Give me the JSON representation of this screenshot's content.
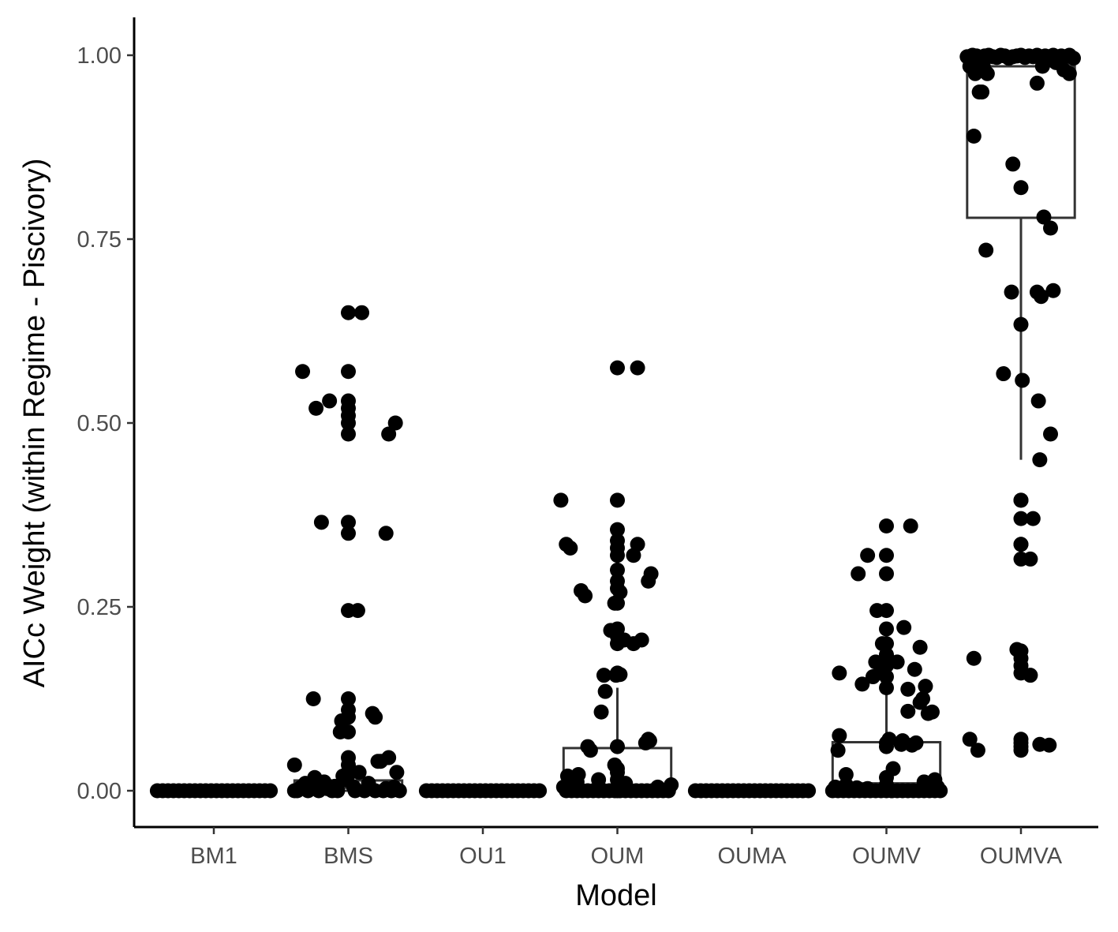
{
  "chart_data": {
    "type": "boxplot-jitter",
    "xlabel": "Model",
    "ylabel": "AICc Weight (within Regime - Piscivory)",
    "ylim": [
      -0.05,
      1.05
    ],
    "yticks": [
      0.0,
      0.25,
      0.5,
      0.75,
      1.0
    ],
    "ytick_labels": [
      "0.00",
      "0.25",
      "0.50",
      "0.75",
      "1.00"
    ],
    "categories": [
      "BM1",
      "BMS",
      "OU1",
      "OUM",
      "OUMA",
      "OUMV",
      "OUMVA"
    ],
    "colors": {
      "point": "#000000",
      "box_stroke": "#333333",
      "axis": "#000000"
    },
    "boxes": [
      {
        "category": "BM1",
        "min": 0.0,
        "q1": 0.0,
        "median": 0.0,
        "q3": 0.0,
        "max": 0.0
      },
      {
        "category": "BMS",
        "min": 0.0,
        "q1": 0.0,
        "median": 0.004,
        "q3": 0.014,
        "max": 0.035
      },
      {
        "category": "OU1",
        "min": 0.0,
        "q1": 0.0,
        "median": 0.0,
        "q3": 0.0,
        "max": 0.0
      },
      {
        "category": "OUM",
        "min": 0.0,
        "q1": 0.0,
        "median": 0.006,
        "q3": 0.058,
        "max": 0.14
      },
      {
        "category": "OUMA",
        "min": 0.0,
        "q1": 0.0,
        "median": 0.0,
        "q3": 0.0,
        "max": 0.0
      },
      {
        "category": "OUMV",
        "min": 0.0,
        "q1": 0.0,
        "median": 0.01,
        "q3": 0.066,
        "max": 0.16
      },
      {
        "category": "OUMVA",
        "min": 0.45,
        "q1": 0.779,
        "median": 0.985,
        "q3": 0.998,
        "max": 1.0
      }
    ],
    "points": {
      "BM1": {
        "offsets": [
          -0.42,
          -0.38,
          -0.34,
          -0.3,
          -0.26,
          -0.22,
          -0.18,
          -0.14,
          -0.1,
          -0.06,
          -0.02,
          0.02,
          0.06,
          0.1,
          0.14,
          0.18,
          0.22,
          0.26,
          0.3,
          0.34,
          0.38,
          0.42
        ],
        "values": [
          0,
          0,
          0,
          0,
          0,
          0,
          0,
          0,
          0,
          0,
          0,
          0,
          0,
          0,
          0,
          0,
          0,
          0,
          0,
          0,
          0,
          0
        ]
      },
      "BMS": {
        "offsets": [
          -0.34,
          -0.24,
          -0.14,
          -0.05,
          0.1,
          0.2,
          0.3,
          0.35,
          0.28,
          0.07,
          -0.2,
          -0.26,
          0.18,
          -0.4,
          0.0,
          0.0,
          0.0,
          0.0,
          0.0,
          0.0,
          0.0,
          0.0,
          0.0,
          0.0,
          0.0,
          0.0,
          0.0,
          0.0,
          0.0,
          0.0,
          0.0,
          -0.38,
          -0.3,
          -0.22,
          -0.12,
          -0.08,
          0.05,
          0.12,
          0.2,
          0.26,
          0.32,
          0.38,
          -0.35,
          -0.27,
          -0.18,
          -0.1,
          -0.04,
          0.08,
          0.15,
          0.24,
          0.3,
          0.36,
          -0.4,
          -0.32,
          -0.25,
          -0.16,
          -0.06,
          0.22,
          0.28,
          -0.02,
          0.04,
          0.34
        ],
        "values": [
          0.57,
          0.52,
          0.53,
          0.095,
          0.65,
          0.1,
          0.485,
          0.5,
          0.35,
          0.245,
          0.365,
          0.125,
          0.105,
          0.035,
          0.65,
          0.57,
          0.53,
          0.52,
          0.51,
          0.5,
          0.485,
          0.365,
          0.35,
          0.245,
          0.125,
          0.11,
          0.1,
          0.08,
          0.045,
          0.035,
          0.022,
          0.0,
          0.0,
          0.0,
          0.0,
          0.0,
          0.0,
          0.0,
          0.0,
          0.0,
          0.0,
          0.0,
          0.005,
          0.008,
          0.012,
          0.006,
          0.02,
          0.025,
          0.01,
          0.04,
          0.045,
          0.025,
          0.0,
          0.01,
          0.018,
          0.003,
          0.08,
          0.04,
          0.003,
          0.015,
          0.005,
          0.005
        ]
      },
      "OU1": {
        "offsets": [
          -0.42,
          -0.38,
          -0.34,
          -0.3,
          -0.26,
          -0.22,
          -0.18,
          -0.14,
          -0.1,
          -0.06,
          -0.02,
          0.02,
          0.06,
          0.1,
          0.14,
          0.18,
          0.22,
          0.26,
          0.3,
          0.34,
          0.38,
          0.42
        ],
        "values": [
          0,
          0,
          0,
          0,
          0,
          0,
          0,
          0,
          0,
          0,
          0,
          0,
          0,
          0,
          0,
          0,
          0,
          0,
          0,
          0,
          0,
          0
        ]
      },
      "OUM": {
        "offsets": [
          -0.38,
          -0.34,
          -0.3,
          -0.25,
          -0.2,
          -0.13,
          -0.06,
          0.05,
          0.12,
          0.18,
          0.22,
          0.25,
          0.27,
          0.3,
          0.33,
          0.34,
          0.38,
          0.4,
          0.41,
          -0.4,
          -0.28,
          -0.22,
          -0.08,
          -0.1,
          -0.06,
          -0.04,
          0.02,
          0.15,
          0.08,
          0.05,
          0.1,
          0.16,
          -0.36,
          -0.32,
          -0.28,
          -0.24,
          -0.18,
          -0.14,
          -0.1,
          -0.06,
          -0.02,
          0.02,
          0.06,
          0.1,
          0.14,
          0.18,
          0.22,
          0.26,
          0.3,
          0.34,
          0.38,
          0.42,
          -0.35,
          -0.22,
          0.08,
          0.03,
          0.0,
          0.0,
          0.0,
          0.0,
          0.0,
          0.0,
          0.0,
          0.0,
          0.0,
          0.0,
          0.0,
          0.0,
          0.0,
          0.0,
          0.0,
          0.0,
          0.0,
          0.0
        ],
        "values": [
          0.395,
          0.335,
          0.33,
          0.272,
          0.265,
          0.575,
          0.255,
          0.27,
          0.32,
          0.335,
          0.295,
          0.285,
          0.205,
          0.2,
          0.205,
          0.065,
          0.07,
          0.068,
          0.005,
          0.005,
          0.02,
          0.022,
          0.218,
          0.157,
          0.135,
          0.107,
          0.157,
          0.158,
          0.06,
          0.055,
          0.035,
          0.0,
          0.0,
          0.0,
          0.0,
          0.0,
          0.0,
          0.0,
          0.0,
          0.0,
          0.0,
          0.0,
          0.0,
          0.0,
          0.0,
          0.0,
          0.0,
          0.0,
          0.0,
          0.0,
          0.0,
          0.008,
          0.012,
          0.015,
          0.01,
          0.395,
          0.355,
          0.34,
          0.33,
          0.32,
          0.3,
          0.285,
          0.275,
          0.255,
          0.22,
          0.21,
          0.2,
          0.16,
          0.06,
          0.025,
          0.0,
          0.575,
          0.03,
          0.015
        ],
        "jitter_x_fixed": [
          -0.42,
          -0.38,
          -0.35,
          -0.27,
          -0.24,
          0.15,
          -0.02,
          0.02,
          0.12,
          0.15,
          0.25,
          0.23,
          0.05,
          0.12,
          0.18,
          0.21,
          0.23,
          0.24,
          0.3,
          -0.4,
          -0.37,
          -0.29,
          -0.05,
          -0.1,
          -0.09,
          -0.12,
          -0.01,
          0.02,
          -0.22,
          -0.2,
          -0.02,
          -0.38,
          -0.34,
          -0.3,
          -0.26,
          -0.22,
          -0.18,
          -0.14,
          -0.1,
          -0.06,
          -0.02,
          0.02,
          0.06,
          0.1,
          0.14,
          0.18,
          0.22,
          0.26,
          0.3,
          0.34,
          0.38,
          0.4,
          -0.3,
          -0.14,
          0.06,
          0.0,
          0.0,
          0.0,
          0.0,
          0.0,
          0.0,
          0.0,
          0.0,
          0.0,
          0.0,
          0.0,
          0.0,
          0.0,
          0.0,
          0.0,
          0.0,
          0.0,
          0.0,
          0.0
        ]
      },
      "OUMA": {
        "offsets": [
          -0.42,
          -0.38,
          -0.34,
          -0.3,
          -0.26,
          -0.22,
          -0.18,
          -0.14,
          -0.1,
          -0.06,
          -0.02,
          0.02,
          0.06,
          0.1,
          0.14,
          0.18,
          0.22,
          0.26,
          0.3,
          0.34,
          0.38,
          0.42
        ],
        "values": [
          0,
          0,
          0,
          0,
          0,
          0,
          0,
          0,
          0,
          0,
          0,
          0,
          0,
          0,
          0,
          0,
          0,
          0,
          0,
          0,
          0,
          0
        ]
      },
      "OUMV": {
        "offsets": [
          -0.21,
          -0.14,
          -0.07,
          0.18,
          -0.35,
          -0.04,
          0.0,
          0.13,
          0.25,
          0.08,
          0.16,
          -0.03,
          -0.08,
          0.02,
          0.21,
          0.25,
          0.31,
          0.34,
          0.29,
          0.16,
          0.11,
          -0.35,
          -0.36,
          -0.3,
          0.12,
          0.19,
          0.22,
          0.27,
          -0.18,
          -0.1,
          0.05,
          0.04,
          -0.4,
          -0.36,
          -0.32,
          -0.28,
          -0.24,
          -0.2,
          -0.16,
          -0.12,
          -0.08,
          -0.04,
          0.0,
          0.04,
          0.08,
          0.12,
          0.16,
          0.2,
          0.24,
          0.28,
          0.32,
          0.36,
          0.4,
          -0.38,
          -0.3,
          -0.22,
          -0.14,
          0.28,
          0.36,
          0.38,
          0.0,
          0.0,
          0.0,
          0.0,
          0.0,
          0.0,
          0.0,
          0.0,
          0.0,
          0.0,
          0.0,
          0.0,
          0.0,
          0.0,
          0.0,
          0.0
        ],
        "values": [
          0.295,
          0.32,
          0.245,
          0.36,
          0.16,
          0.162,
          0.182,
          0.222,
          0.195,
          0.175,
          0.138,
          0.2,
          0.175,
          0.07,
          0.165,
          0.12,
          0.105,
          0.107,
          0.142,
          0.108,
          0.063,
          0.075,
          0.055,
          0.022,
          0.068,
          0.062,
          0.065,
          0.125,
          0.145,
          0.155,
          0.03,
          0.0,
          0.0,
          0.0,
          0.0,
          0.0,
          0.0,
          0.0,
          0.0,
          0.0,
          0.0,
          0.0,
          0.0,
          0.0,
          0.0,
          0.0,
          0.0,
          0.0,
          0.0,
          0.0,
          0.0,
          0.0,
          0.0,
          0.005,
          0.008,
          0.004,
          0.003,
          0.012,
          0.015,
          0.005,
          0.36,
          0.32,
          0.295,
          0.245,
          0.22,
          0.2,
          0.185,
          0.17,
          0.155,
          0.14,
          0.065,
          0.06,
          0.018,
          0.008,
          0.005,
          0.004
        ]
      },
      "OUMVA": {
        "offsets": [
          -0.4,
          -0.36,
          -0.33,
          -0.3,
          -0.27,
          -0.24,
          -0.21,
          -0.18,
          -0.15,
          -0.12,
          -0.09,
          -0.06,
          -0.03,
          0.0,
          0.03,
          0.06,
          0.09,
          0.12,
          0.15,
          0.18,
          0.21,
          0.24,
          0.27,
          0.3,
          0.33,
          0.36,
          0.39,
          -0.38,
          -0.34,
          -0.31,
          -0.28,
          -0.25,
          0.16,
          0.26,
          0.32,
          0.36,
          -0.31,
          -0.29,
          -0.35,
          -0.06,
          0.0,
          0.17,
          0.22,
          0.12,
          -0.26,
          0.12,
          0.15,
          0.24,
          -0.07,
          -0.13,
          0.13,
          0.22,
          0.14,
          0.01,
          0.0,
          0.09,
          0.07,
          -0.35,
          0.0,
          -0.03,
          -0.38,
          0.14,
          0.21,
          -0.32,
          0.07,
          0.0,
          0.0,
          0.0,
          0.0,
          0.0,
          0.0,
          0.0,
          0.0,
          0.0,
          0.0,
          0.0,
          0.0,
          0.0
        ],
        "values": [
          0.998,
          1.0,
          0.999,
          0.996,
          0.999,
          1.0,
          0.998,
          0.997,
          1.0,
          0.999,
          0.996,
          0.998,
          0.999,
          1.0,
          0.997,
          0.999,
          0.998,
          1.0,
          0.996,
          0.999,
          0.998,
          1.0,
          0.997,
          0.999,
          0.998,
          1.0,
          0.996,
          0.985,
          0.975,
          0.98,
          0.985,
          0.975,
          0.985,
          0.99,
          0.98,
          0.975,
          0.95,
          0.95,
          0.89,
          0.852,
          0.82,
          0.78,
          0.765,
          0.962,
          0.735,
          0.678,
          0.672,
          0.68,
          0.678,
          0.567,
          0.53,
          0.485,
          0.45,
          0.558,
          0.634,
          0.37,
          0.315,
          0.18,
          0.395,
          0.192,
          0.07,
          0.063,
          0.062,
          0.055,
          0.157,
          0.395,
          0.37,
          0.335,
          0.315,
          0.18,
          0.17,
          0.16,
          0.07,
          0.065,
          0.06,
          0.055,
          0.19,
          0.335
        ]
      }
    }
  }
}
